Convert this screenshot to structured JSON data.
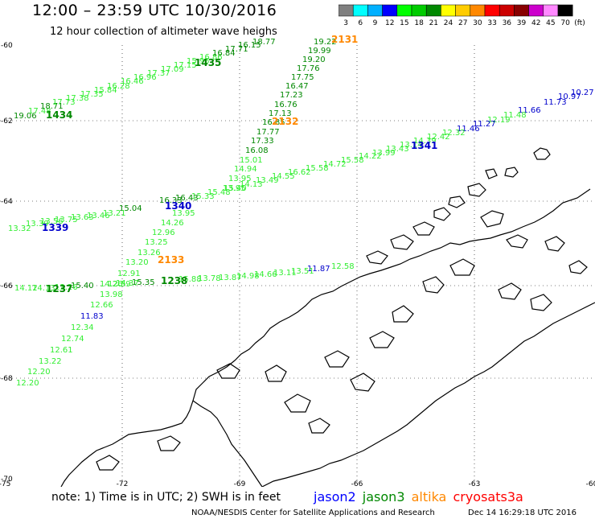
{
  "header": {
    "title": "12:00 – 23:59 UTC 10/30/2016",
    "subtitle": "12 hour collection of altimeter wave heighs"
  },
  "colorbar": {
    "unit": "(ft)",
    "ticks": [
      "3",
      "6",
      "9",
      "12",
      "15",
      "18",
      "21",
      "24",
      "27",
      "30",
      "33",
      "36",
      "39",
      "42",
      "45",
      "70"
    ],
    "colors": [
      "#808080",
      "#00ffff",
      "#00b0ff",
      "#0000ff",
      "#00ff00",
      "#00cc00",
      "#008800",
      "#ffff00",
      "#ffcc00",
      "#ff8800",
      "#ff0000",
      "#cc0000",
      "#880000",
      "#cc00cc",
      "#ff88ff",
      "#000000"
    ]
  },
  "axes": {
    "lat_labels": [
      "-60",
      "-62",
      "-64",
      "-66",
      "-68",
      "-70"
    ],
    "lon_labels": [
      "-75",
      "-72",
      "-69",
      "-66",
      "-63",
      "-60"
    ]
  },
  "satellite_colors": {
    "jason2": "#0000ff",
    "jason3": "#008800",
    "altika": "#ff8800",
    "cryosat": "#ff0000",
    "s3a": "#ff0000",
    "light": "#33ee33",
    "mid": "#00bb00"
  },
  "tracks": [
    {
      "time": "1434",
      "time_color": "#008800",
      "time_pos": [
        57,
        147
      ],
      "values": [
        {
          "v": "19.06",
          "c": "#008800",
          "p": [
            17,
            147
          ]
        },
        {
          "v": "17.48",
          "c": "#33ee33",
          "p": [
            35,
            141
          ]
        },
        {
          "v": "18.71",
          "c": "#008800",
          "p": [
            50,
            135
          ]
        },
        {
          "v": "17.73",
          "c": "#33ee33",
          "p": [
            65,
            130
          ]
        },
        {
          "v": "17.38",
          "c": "#33ee33",
          "p": [
            82,
            125
          ]
        },
        {
          "v": "17.35",
          "c": "#33ee33",
          "p": [
            100,
            120
          ]
        },
        {
          "v": "15.84",
          "c": "#33ee33",
          "p": [
            117,
            115
          ]
        },
        {
          "v": "16.28",
          "c": "#33ee33",
          "p": [
            133,
            110
          ]
        },
        {
          "v": "16.46",
          "c": "#33ee33",
          "p": [
            150,
            104
          ]
        },
        {
          "v": "16.96",
          "c": "#33ee33",
          "p": [
            166,
            99
          ]
        },
        {
          "v": "17.37",
          "c": "#33ee33",
          "p": [
            183,
            94
          ]
        },
        {
          "v": "17.09",
          "c": "#33ee33",
          "p": [
            200,
            89
          ]
        },
        {
          "v": "17.15",
          "c": "#33ee33",
          "p": [
            216,
            84
          ]
        },
        {
          "v": "15.95",
          "c": "#33ee33",
          "p": [
            232,
            79
          ]
        },
        {
          "v": "16.86",
          "c": "#33ee33",
          "p": [
            248,
            74
          ]
        },
        {
          "v": "16.84",
          "c": "#008800",
          "p": [
            264,
            69
          ]
        },
        {
          "v": "17.71",
          "c": "#008800",
          "p": [
            280,
            64
          ]
        },
        {
          "v": "16.15",
          "c": "#008800",
          "p": [
            296,
            59
          ]
        },
        {
          "v": "18.77",
          "c": "#008800",
          "p": [
            314,
            55
          ]
        }
      ]
    },
    {
      "time": "1435",
      "time_color": "#008800",
      "time_pos": [
        242,
        82
      ],
      "values": []
    },
    {
      "time": "2131",
      "time_color": "#ff8800",
      "time_pos": [
        412,
        53
      ],
      "values": [
        {
          "v": "19.22",
          "c": "#008800",
          "p": [
            390,
            55
          ]
        },
        {
          "v": "19.99",
          "c": "#008800",
          "p": [
            383,
            66
          ]
        },
        {
          "v": "19.20",
          "c": "#008800",
          "p": [
            376,
            77
          ]
        },
        {
          "v": "17.76",
          "c": "#008800",
          "p": [
            369,
            88
          ]
        },
        {
          "v": "17.75",
          "c": "#008800",
          "p": [
            362,
            99
          ]
        },
        {
          "v": "16.47",
          "c": "#008800",
          "p": [
            355,
            110
          ]
        },
        {
          "v": "17.23",
          "c": "#008800",
          "p": [
            348,
            121
          ]
        },
        {
          "v": "16.76",
          "c": "#008800",
          "p": [
            341,
            133
          ]
        },
        {
          "v": "17.13",
          "c": "#008800",
          "p": [
            334,
            144
          ]
        },
        {
          "v": "16.85",
          "c": "#008800",
          "p": [
            326,
            155
          ]
        },
        {
          "v": "17.77",
          "c": "#008800",
          "p": [
            319,
            167
          ]
        },
        {
          "v": "17.33",
          "c": "#008800",
          "p": [
            312,
            178
          ]
        },
        {
          "v": "16.08",
          "c": "#008800",
          "p": [
            305,
            190
          ]
        },
        {
          "v": "15.01",
          "c": "#33ee33",
          "p": [
            298,
            202
          ]
        },
        {
          "v": "14.94",
          "c": "#33ee33",
          "p": [
            291,
            213
          ]
        },
        {
          "v": "13.95",
          "c": "#33ee33",
          "p": [
            284,
            225
          ]
        },
        {
          "v": "13.95",
          "c": "#33ee33",
          "p": [
            277,
            237
          ]
        }
      ]
    },
    {
      "time": "2132",
      "time_color": "#ff8800",
      "time_pos": [
        338,
        155
      ],
      "values": []
    },
    {
      "time": "1341",
      "time_color": "#0000cc",
      "time_pos": [
        511,
        185
      ],
      "values": [
        {
          "v": "10.27",
          "c": "#0000cc",
          "p": [
            710,
            118
          ]
        },
        {
          "v": "10.97",
          "c": "#0000cc",
          "p": [
            694,
            123
          ]
        },
        {
          "v": "11.73",
          "c": "#0000cc",
          "p": [
            676,
            130
          ]
        },
        {
          "v": "11.66",
          "c": "#0000cc",
          "p": [
            644,
            140
          ]
        },
        {
          "v": "11.48",
          "c": "#33ee33",
          "p": [
            626,
            146
          ]
        },
        {
          "v": "12.19",
          "c": "#33ee33",
          "p": [
            606,
            152
          ]
        },
        {
          "v": "11.27",
          "c": "#0000cc",
          "p": [
            588,
            157
          ]
        },
        {
          "v": "11.46",
          "c": "#0000cc",
          "p": [
            568,
            163
          ]
        },
        {
          "v": "12.32",
          "c": "#33ee33",
          "p": [
            550,
            168
          ]
        },
        {
          "v": "12.42",
          "c": "#33ee33",
          "p": [
            531,
            173
          ]
        },
        {
          "v": "14.39",
          "c": "#33ee33",
          "p": [
            514,
            178
          ]
        },
        {
          "v": "13.14",
          "c": "#33ee33",
          "p": [
            497,
            183
          ]
        },
        {
          "v": "13.43",
          "c": "#33ee33",
          "p": [
            480,
            188
          ]
        },
        {
          "v": "13.99",
          "c": "#33ee33",
          "p": [
            463,
            193
          ]
        },
        {
          "v": "14.22",
          "c": "#33ee33",
          "p": [
            446,
            197
          ]
        },
        {
          "v": "15.58",
          "c": "#33ee33",
          "p": [
            424,
            202
          ]
        },
        {
          "v": "14.72",
          "c": "#33ee33",
          "p": [
            402,
            207
          ]
        },
        {
          "v": "15.58",
          "c": "#33ee33",
          "p": [
            380,
            212
          ]
        },
        {
          "v": "16.62",
          "c": "#33ee33",
          "p": [
            358,
            217
          ]
        },
        {
          "v": "14.55",
          "c": "#33ee33",
          "p": [
            338,
            222
          ]
        },
        {
          "v": "13.49",
          "c": "#33ee33",
          "p": [
            318,
            227
          ]
        },
        {
          "v": "14.13",
          "c": "#33ee33",
          "p": [
            298,
            232
          ]
        },
        {
          "v": "15.40",
          "c": "#33ee33",
          "p": [
            278,
            237
          ]
        },
        {
          "v": "15.48",
          "c": "#33ee33",
          "p": [
            258,
            242
          ]
        },
        {
          "v": "15.33",
          "c": "#33ee33",
          "p": [
            238,
            247
          ]
        },
        {
          "v": "16.43",
          "c": "#008800",
          "p": [
            218,
            249
          ]
        },
        {
          "v": "16.33",
          "c": "#008800",
          "p": [
            198,
            252
          ]
        }
      ]
    },
    {
      "time": "1340",
      "time_color": "#0000cc",
      "time_pos": [
        205,
        260
      ],
      "values": [
        {
          "v": "15.04",
          "c": "#008800",
          "p": [
            148,
            262
          ]
        },
        {
          "v": "13.21",
          "c": "#33ee33",
          "p": [
            128,
            268
          ]
        },
        {
          "v": "13.46",
          "c": "#33ee33",
          "p": [
            108,
            271
          ]
        },
        {
          "v": "13.63",
          "c": "#33ee33",
          "p": [
            88,
            273
          ]
        },
        {
          "v": "13.75",
          "c": "#33ee33",
          "p": [
            68,
            276
          ]
        },
        {
          "v": "13.56",
          "c": "#33ee33",
          "p": [
            50,
            278
          ]
        },
        {
          "v": "13.39",
          "c": "#33ee33",
          "p": [
            32,
            281
          ]
        },
        {
          "v": "13.32",
          "c": "#33ee33",
          "p": [
            10,
            287
          ]
        }
      ]
    },
    {
      "time": "1339",
      "time_color": "#0000cc",
      "time_pos": [
        52,
        287
      ],
      "values": []
    },
    {
      "time": "2133",
      "time_color": "#ff8800",
      "time_pos": [
        196,
        327
      ],
      "values": [
        {
          "v": "13.95",
          "c": "#33ee33",
          "p": [
            214,
            268
          ]
        },
        {
          "v": "14.26",
          "c": "#33ee33",
          "p": [
            200,
            280
          ]
        },
        {
          "v": "12.96",
          "c": "#33ee33",
          "p": [
            189,
            292
          ]
        },
        {
          "v": "13.25",
          "c": "#33ee33",
          "p": [
            180,
            304
          ]
        },
        {
          "v": "13.26",
          "c": "#33ee33",
          "p": [
            171,
            317
          ]
        },
        {
          "v": "13.20",
          "c": "#33ee33",
          "p": [
            156,
            329
          ]
        },
        {
          "v": "12.91",
          "c": "#33ee33",
          "p": [
            146,
            343
          ]
        },
        {
          "v": "12.59",
          "c": "#33ee33",
          "p": [
            134,
            356
          ]
        },
        {
          "v": "13.98",
          "c": "#33ee33",
          "p": [
            124,
            369
          ]
        },
        {
          "v": "12.66",
          "c": "#33ee33",
          "p": [
            112,
            382
          ]
        },
        {
          "v": "11.83",
          "c": "#0000cc",
          "p": [
            100,
            396
          ]
        },
        {
          "v": "12.34",
          "c": "#33ee33",
          "p": [
            88,
            410
          ]
        },
        {
          "v": "12.74",
          "c": "#33ee33",
          "p": [
            76,
            424
          ]
        },
        {
          "v": "12.61",
          "c": "#33ee33",
          "p": [
            62,
            438
          ]
        },
        {
          "v": "13.22",
          "c": "#33ee33",
          "p": [
            48,
            452
          ]
        },
        {
          "v": "12.20",
          "c": "#33ee33",
          "p": [
            34,
            465
          ]
        },
        {
          "v": "12.20",
          "c": "#33ee33",
          "p": [
            20,
            479
          ]
        }
      ]
    },
    {
      "time": "1238",
      "time_color": "#008800",
      "time_pos": [
        200,
        353
      ],
      "values": [
        {
          "v": "12.58",
          "c": "#33ee33",
          "p": [
            412,
            334
          ]
        },
        {
          "v": "11.87",
          "c": "#0000cc",
          "p": [
            382,
            337
          ]
        },
        {
          "v": "13.51",
          "c": "#33ee33",
          "p": [
            362,
            340
          ]
        },
        {
          "v": "13.11",
          "c": "#33ee33",
          "p": [
            340,
            342
          ]
        },
        {
          "v": "14.66",
          "c": "#33ee33",
          "p": [
            316,
            344
          ]
        },
        {
          "v": "14.98",
          "c": "#33ee33",
          "p": [
            294,
            346
          ]
        },
        {
          "v": "13.87",
          "c": "#33ee33",
          "p": [
            272,
            348
          ]
        },
        {
          "v": "13.78",
          "c": "#33ee33",
          "p": [
            246,
            349
          ]
        },
        {
          "v": "15.88",
          "c": "#33ee33",
          "p": [
            222,
            350
          ]
        },
        {
          "v": "15.35",
          "c": "#008800",
          "p": [
            164,
            354
          ]
        },
        {
          "v": "14.37",
          "c": "#33ee33",
          "p": [
            144,
            355
          ]
        },
        {
          "v": "14.26",
          "c": "#33ee33",
          "p": [
            124,
            356
          ]
        },
        {
          "v": "15.40",
          "c": "#008800",
          "p": [
            88,
            358
          ]
        },
        {
          "v": "13.26",
          "c": "#33ee33",
          "p": [
            68,
            360
          ]
        },
        {
          "v": "14.13",
          "c": "#33ee33",
          "p": [
            40,
            361
          ]
        },
        {
          "v": "14.12",
          "c": "#33ee33",
          "p": [
            18,
            361
          ]
        }
      ]
    },
    {
      "time": "1237",
      "time_color": "#008800",
      "time_pos": [
        57,
        363
      ],
      "values": []
    }
  ],
  "footer": {
    "note": "note:  1) Time is in UTC; 2) SWH is in feet",
    "legend": [
      "jason2",
      "jason3",
      "altika",
      "cryosat",
      "s3a"
    ],
    "credit_org": "NOAA/NESDIS Center for Satellite Applications and Research",
    "credit_date": "Dec 14 16:29:18 UTC 2016"
  }
}
